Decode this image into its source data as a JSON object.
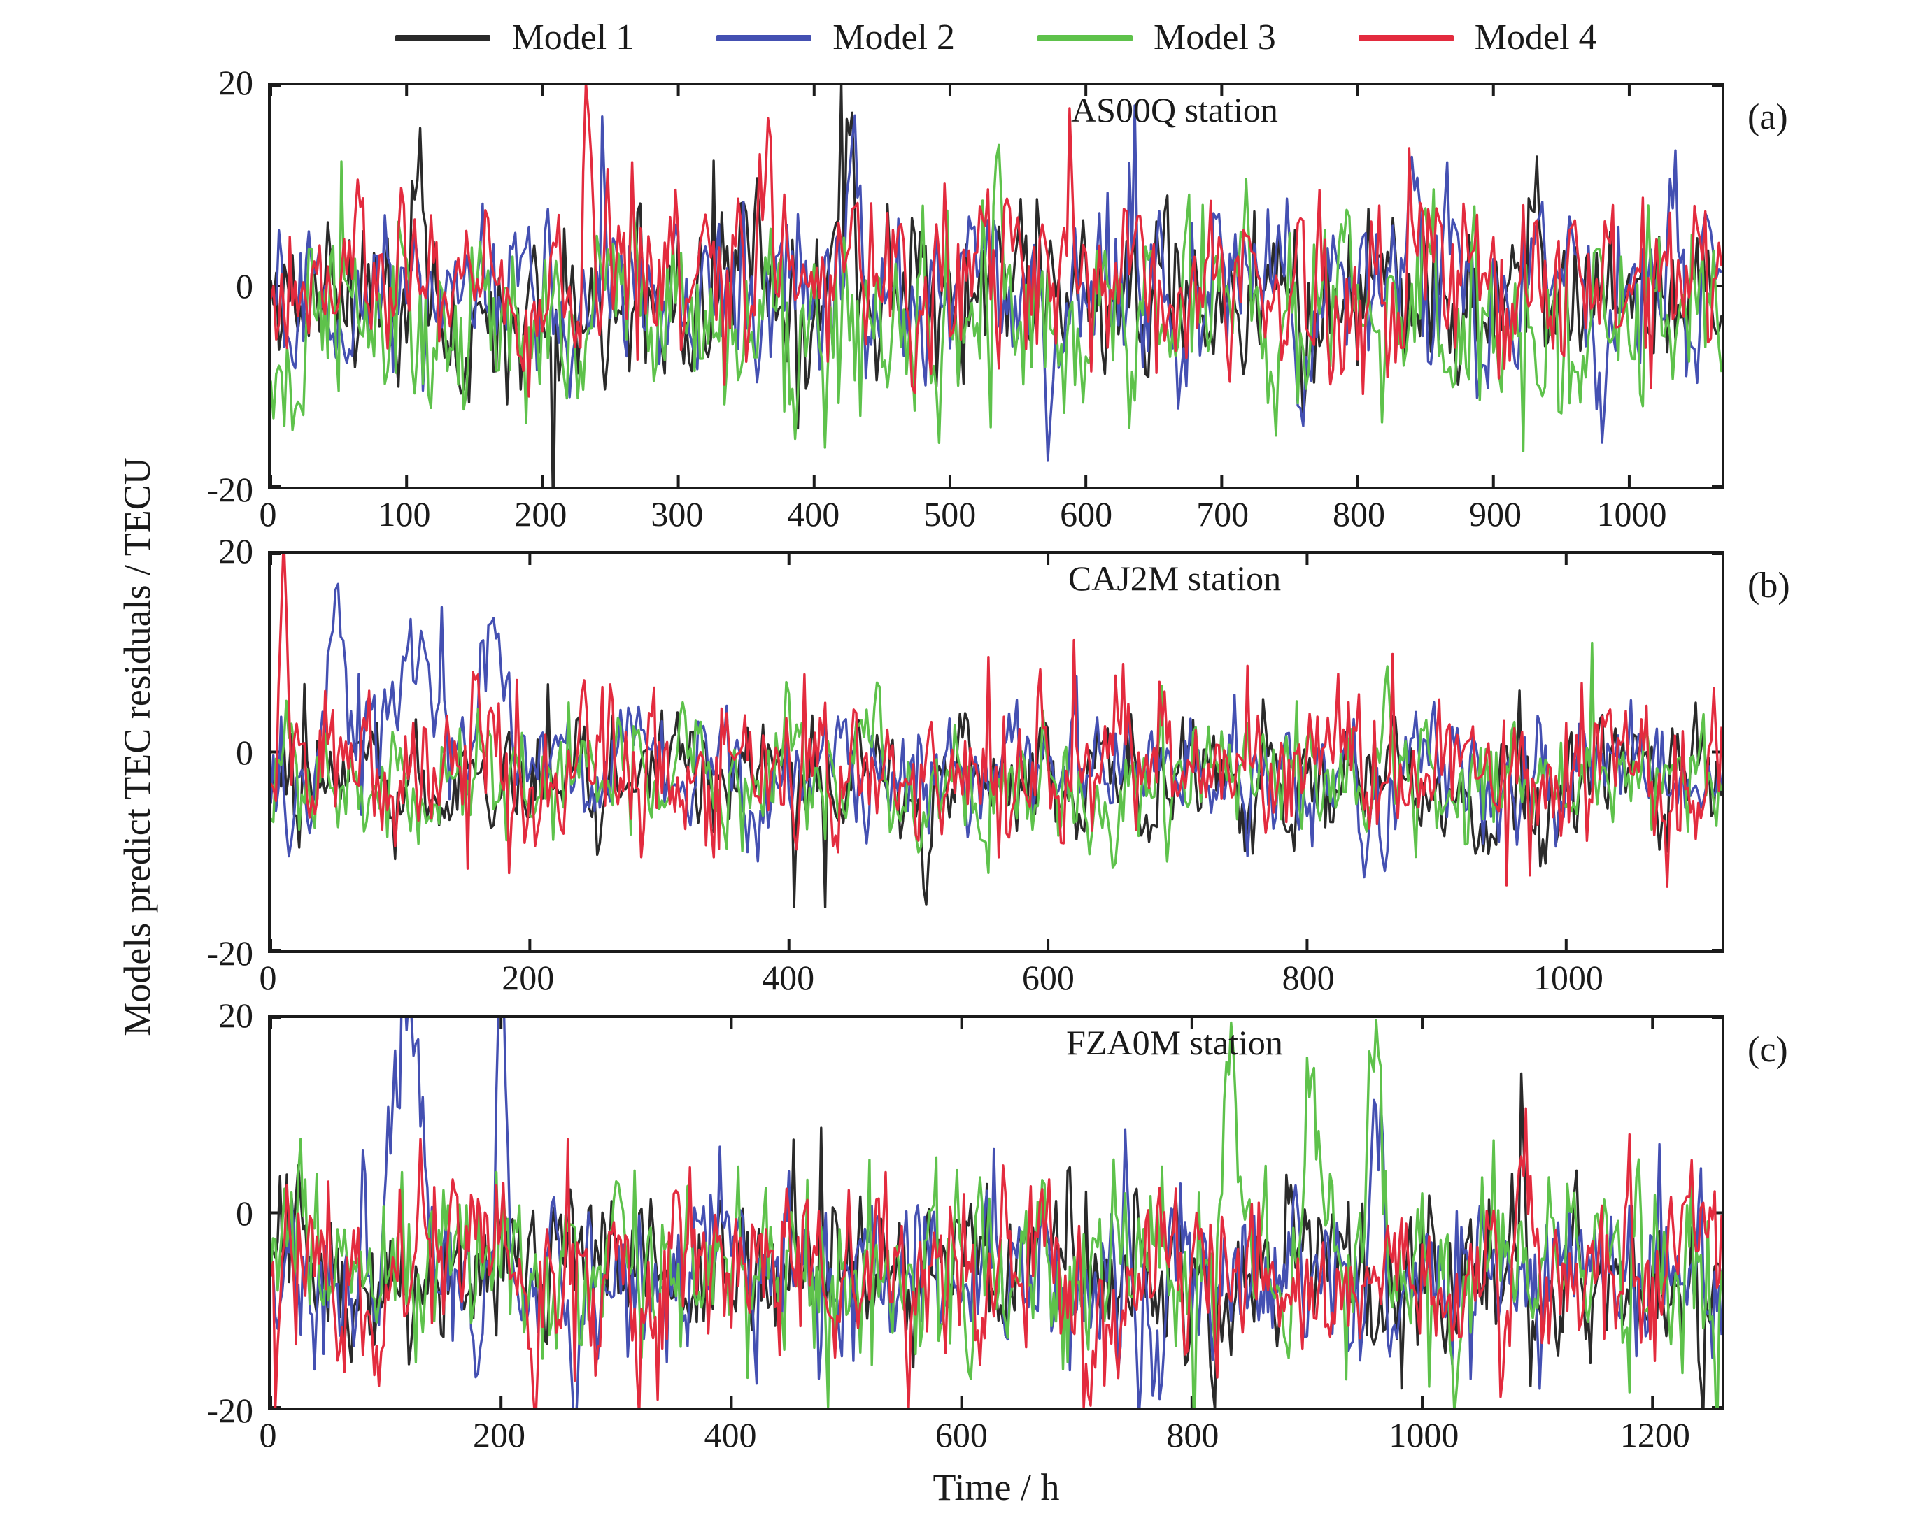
{
  "figure": {
    "y_axis_label": "Models predict TEC residuals / TECU",
    "x_axis_label": "Time / h",
    "background": "#ffffff",
    "frame_color": "#1b1b1b"
  },
  "legend": {
    "items": [
      {
        "label": "Model 1",
        "color": "#2a2a2a"
      },
      {
        "label": "Model 2",
        "color": "#4450b2"
      },
      {
        "label": "Model 3",
        "color": "#5ec24b"
      },
      {
        "label": "Model 4",
        "color": "#e32b3e"
      }
    ]
  },
  "chart_data": [
    {
      "type": "line",
      "panel_label": "(a)",
      "title": "AS00Q station",
      "xlim": [
        0,
        1068
      ],
      "xticks": [
        0,
        100,
        200,
        300,
        400,
        500,
        600,
        700,
        800,
        900,
        1000
      ],
      "ylim": [
        -20,
        20
      ],
      "yticks": [
        20,
        0,
        -20
      ],
      "x_step_h": 2,
      "grid": false,
      "legend_position": "above-figure",
      "series": [
        {
          "name": "Model 1",
          "color": "#2a2a2a",
          "seed": 11,
          "bias": -1.0,
          "ar": 0.5,
          "sigma": 3.8,
          "spike_p": 0.02,
          "spike_amp": 8,
          "spike_pos_ratio": 0.45
        },
        {
          "name": "Model 2",
          "color": "#4450b2",
          "seed": 12,
          "bias": 0.0,
          "ar": 0.5,
          "sigma": 3.8,
          "spike_p": 0.025,
          "spike_amp": 8,
          "spike_pos_ratio": 0.55
        },
        {
          "name": "Model 3",
          "color": "#5ec24b",
          "seed": 13,
          "bias": -2.5,
          "ar": 0.5,
          "sigma": 4.2,
          "spike_p": 0.03,
          "spike_amp": 8,
          "spike_pos_ratio": 0.3
        },
        {
          "name": "Model 4",
          "color": "#e32b3e",
          "seed": 14,
          "bias": 0.5,
          "ar": 0.45,
          "sigma": 4.0,
          "spike_p": 0.05,
          "spike_amp": 8,
          "spike_pos_ratio": 0.7
        }
      ],
      "events": [
        {
          "series": 0,
          "x0": 100,
          "x1": 115,
          "dy": 15
        },
        {
          "series": 0,
          "x0": 415,
          "x1": 432,
          "dy": 16
        },
        {
          "series": 1,
          "x0": 420,
          "x1": 435,
          "dy": 15
        },
        {
          "series": 1,
          "x0": 833,
          "x1": 848,
          "dy": 15
        },
        {
          "series": 2,
          "x0": 530,
          "x1": 542,
          "dy": 16
        },
        {
          "series": 3,
          "x0": 228,
          "x1": 240,
          "dy": 15
        },
        {
          "series": 3,
          "x0": 358,
          "x1": 370,
          "dy": 13
        }
      ]
    },
    {
      "type": "line",
      "panel_label": "(b)",
      "title": "CAJ2M station",
      "xlim": [
        0,
        1120
      ],
      "xticks": [
        0,
        200,
        400,
        600,
        800,
        1000
      ],
      "ylim": [
        -20,
        20
      ],
      "yticks": [
        20,
        0,
        -20
      ],
      "x_step_h": 2,
      "grid": false,
      "series": [
        {
          "name": "Model 1",
          "color": "#2a2a2a",
          "seed": 21,
          "bias": -3.0,
          "ar": 0.55,
          "sigma": 2.8,
          "spike_p": 0.02,
          "spike_amp": 7,
          "spike_pos_ratio": 0.25
        },
        {
          "name": "Model 2",
          "color": "#4450b2",
          "seed": 22,
          "bias": -2.0,
          "ar": 0.55,
          "sigma": 2.6,
          "spike_p": 0.015,
          "spike_amp": 6,
          "spike_pos_ratio": 0.5
        },
        {
          "name": "Model 3",
          "color": "#5ec24b",
          "seed": 23,
          "bias": -2.5,
          "ar": 0.55,
          "sigma": 2.7,
          "spike_p": 0.02,
          "spike_amp": 6,
          "spike_pos_ratio": 0.45
        },
        {
          "name": "Model 4",
          "color": "#e32b3e",
          "seed": 24,
          "bias": -1.5,
          "ar": 0.4,
          "sigma": 3.0,
          "spike_p": 0.06,
          "spike_amp": 8,
          "spike_pos_ratio": 0.6
        }
      ],
      "events": [
        {
          "series": 1,
          "x0": 35,
          "x1": 70,
          "dy": 15
        },
        {
          "series": 1,
          "x0": 70,
          "x1": 150,
          "dy": 10
        },
        {
          "series": 1,
          "x0": 150,
          "x1": 190,
          "dy": 12
        },
        {
          "series": 0,
          "x0": 492,
          "x1": 512,
          "dy": -12
        },
        {
          "series": 0,
          "x0": 925,
          "x1": 952,
          "dy": -11
        },
        {
          "series": 3,
          "x0": 5,
          "x1": 15,
          "dy": 16
        }
      ]
    },
    {
      "type": "line",
      "panel_label": "(c)",
      "title": "FZA0M station",
      "xlim": [
        0,
        1260
      ],
      "xticks": [
        0,
        200,
        400,
        600,
        800,
        1000,
        1200
      ],
      "ylim": [
        -20,
        20
      ],
      "yticks": [
        20,
        0,
        -20
      ],
      "x_step_h": 2,
      "grid": false,
      "series": [
        {
          "name": "Model 1",
          "color": "#2a2a2a",
          "seed": 31,
          "bias": -6.0,
          "ar": 0.55,
          "sigma": 3.6,
          "spike_p": 0.02,
          "spike_amp": 7,
          "spike_pos_ratio": 0.35
        },
        {
          "name": "Model 2",
          "color": "#4450b2",
          "seed": 32,
          "bias": -6.0,
          "ar": 0.55,
          "sigma": 3.8,
          "spike_p": 0.02,
          "spike_amp": 8,
          "spike_pos_ratio": 0.4
        },
        {
          "name": "Model 3",
          "color": "#5ec24b",
          "seed": 33,
          "bias": -5.5,
          "ar": 0.55,
          "sigma": 3.9,
          "spike_p": 0.03,
          "spike_amp": 8,
          "spike_pos_ratio": 0.4
        },
        {
          "name": "Model 4",
          "color": "#e32b3e",
          "seed": 34,
          "bias": -6.0,
          "ar": 0.5,
          "sigma": 3.8,
          "spike_p": 0.04,
          "spike_amp": 8,
          "spike_pos_ratio": 0.4
        }
      ],
      "events": [
        {
          "series": 1,
          "x0": 96,
          "x1": 140,
          "dy": 30
        },
        {
          "series": 1,
          "x0": 194,
          "x1": 208,
          "dy": 34
        },
        {
          "series": 1,
          "x0": 258,
          "x1": 275,
          "dy": -8
        },
        {
          "series": 2,
          "x0": 822,
          "x1": 842,
          "dy": 20
        },
        {
          "series": 2,
          "x0": 893,
          "x1": 912,
          "dy": 18
        },
        {
          "series": 2,
          "x0": 950,
          "x1": 972,
          "dy": 21
        },
        {
          "series": 1,
          "x0": 952,
          "x1": 970,
          "dy": 20
        }
      ]
    }
  ]
}
